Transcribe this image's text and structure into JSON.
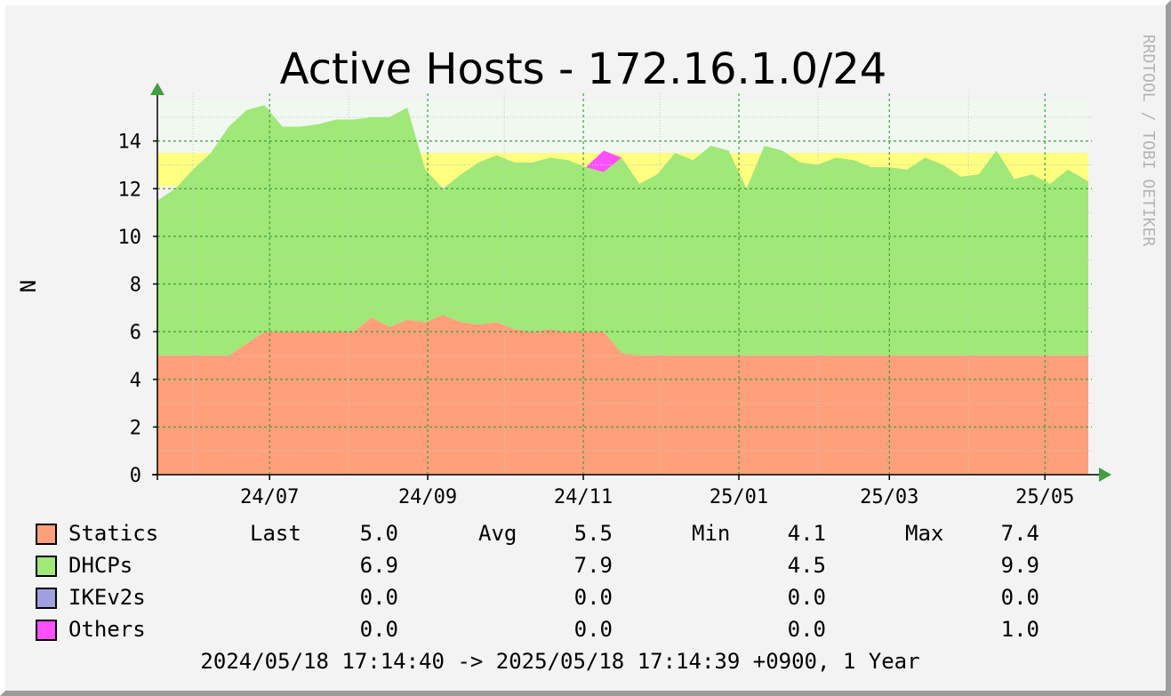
{
  "chart_data": {
    "type": "area",
    "title": "Active Hosts - 172.16.1.0/24",
    "ylabel": "N",
    "ylim": [
      0,
      16
    ],
    "yticks": [
      0,
      2,
      4,
      6,
      8,
      10,
      12,
      14
    ],
    "xlim": [
      "2024/05/18",
      "2025/05/18"
    ],
    "xticks": [
      {
        "label": "24/07",
        "date": "2024-07-01"
      },
      {
        "label": "24/09",
        "date": "2024-09-01"
      },
      {
        "label": "24/11",
        "date": "2024-11-01"
      },
      {
        "label": "25/01",
        "date": "2025-01-01"
      },
      {
        "label": "25/03",
        "date": "2025-03-01"
      },
      {
        "label": "25/05",
        "date": "2025-05-01"
      }
    ],
    "grid": true,
    "stacked": true,
    "background_bands": [
      {
        "from": 12.1,
        "to": 13.5,
        "color": "#ffff80"
      },
      {
        "from": 13.5,
        "to": 15.7,
        "color": "#f0f8f0"
      }
    ],
    "x": [
      "2024-05-18",
      "2024-05-25",
      "2024-06-01",
      "2024-06-08",
      "2024-06-15",
      "2024-06-22",
      "2024-06-29",
      "2024-07-06",
      "2024-07-13",
      "2024-07-20",
      "2024-07-27",
      "2024-08-03",
      "2024-08-10",
      "2024-08-17",
      "2024-08-24",
      "2024-08-31",
      "2024-09-07",
      "2024-09-14",
      "2024-09-21",
      "2024-09-28",
      "2024-10-05",
      "2024-10-12",
      "2024-10-19",
      "2024-10-26",
      "2024-11-02",
      "2024-11-09",
      "2024-11-16",
      "2024-11-23",
      "2024-11-30",
      "2024-12-07",
      "2024-12-14",
      "2024-12-21",
      "2024-12-28",
      "2025-01-04",
      "2025-01-11",
      "2025-01-18",
      "2025-01-25",
      "2025-02-01",
      "2025-02-08",
      "2025-02-15",
      "2025-02-22",
      "2025-03-01",
      "2025-03-08",
      "2025-03-15",
      "2025-03-22",
      "2025-03-29",
      "2025-04-05",
      "2025-04-12",
      "2025-04-19",
      "2025-04-26",
      "2025-05-03",
      "2025-05-10",
      "2025-05-18"
    ],
    "series": [
      {
        "name": "Statics",
        "color": "#ffa07a",
        "values": [
          5,
          5,
          5,
          5,
          5,
          5.5,
          6,
          6,
          6,
          6,
          6,
          6,
          6.6,
          6.2,
          6.5,
          6.4,
          6.7,
          6.4,
          6.3,
          6.4,
          6.1,
          6,
          6.1,
          6,
          6,
          6,
          5.1,
          5,
          5,
          5,
          5,
          5,
          5,
          5,
          5,
          5,
          5,
          5,
          5,
          5,
          5,
          5,
          5,
          5,
          5,
          5,
          5,
          5,
          5,
          5,
          5,
          5,
          5
        ]
      },
      {
        "name": "DHCPs",
        "color": "#a0e878",
        "values": [
          6.5,
          7,
          7.8,
          8.5,
          9.6,
          9.8,
          9.5,
          8.6,
          8.6,
          8.7,
          8.9,
          8.9,
          8.4,
          8.8,
          8.9,
          6.4,
          5.3,
          6.2,
          6.8,
          7,
          7,
          7.1,
          7.2,
          7.2,
          6.9,
          6.7,
          8.2,
          7.2,
          7.6,
          8.5,
          8.2,
          8.8,
          8.6,
          7,
          8.8,
          8.6,
          8.1,
          8,
          8.3,
          8.2,
          7.9,
          7.9,
          7.8,
          8.3,
          8,
          7.5,
          7.6,
          8.6,
          7.4,
          7.6,
          7.2,
          7.8,
          7.3
        ]
      },
      {
        "name": "IKEv2s",
        "color": "#a0a0e0",
        "values": [
          0,
          0,
          0,
          0,
          0,
          0,
          0,
          0,
          0,
          0,
          0,
          0,
          0,
          0,
          0,
          0,
          0,
          0,
          0,
          0,
          0,
          0,
          0,
          0,
          0,
          0,
          0,
          0,
          0,
          0,
          0,
          0,
          0,
          0,
          0,
          0,
          0,
          0,
          0,
          0,
          0,
          0,
          0,
          0,
          0,
          0,
          0,
          0,
          0,
          0,
          0,
          0,
          0
        ]
      },
      {
        "name": "Others",
        "color": "#ff50ff",
        "values": [
          0,
          0,
          0,
          0,
          0,
          0,
          0,
          0,
          0,
          0,
          0,
          0,
          0,
          0,
          0,
          0,
          0,
          0,
          0,
          0,
          0,
          0,
          0,
          0,
          0,
          0.9,
          0,
          0,
          0,
          0,
          0,
          0,
          0,
          0,
          0,
          0,
          0,
          0,
          0,
          0,
          0,
          0,
          0,
          0,
          0,
          0,
          0,
          0,
          0,
          0,
          0,
          0,
          0
        ]
      }
    ],
    "legend": {
      "headers": {
        "last": "Last",
        "avg": "Avg",
        "min": "Min",
        "max": "Max"
      },
      "rows": [
        {
          "name": "Statics",
          "last": "5.0",
          "avg": "5.5",
          "min": "4.1",
          "max": "7.4",
          "color": "#ffa07a"
        },
        {
          "name": "DHCPs",
          "last": "6.9",
          "avg": "7.9",
          "min": "4.5",
          "max": "9.9",
          "color": "#a0e878"
        },
        {
          "name": "IKEv2s",
          "last": "0.0",
          "avg": "0.0",
          "min": "0.0",
          "max": "0.0",
          "color": "#a0a0e0"
        },
        {
          "name": "Others",
          "last": "0.0",
          "avg": "0.0",
          "min": "0.0",
          "max": "1.0",
          "color": "#ff50ff"
        }
      ]
    },
    "footer": "2024/05/18 17:14:40 -> 2025/05/18 17:14:39 +0900, 1 Year",
    "watermark": "RRDTOOL / TOBI OETIKER"
  }
}
